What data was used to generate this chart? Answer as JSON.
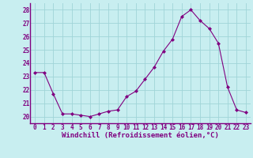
{
  "x": [
    0,
    1,
    2,
    3,
    4,
    5,
    6,
    7,
    8,
    9,
    10,
    11,
    12,
    13,
    14,
    15,
    16,
    17,
    18,
    19,
    20,
    21,
    22,
    23
  ],
  "y": [
    23.3,
    23.3,
    21.7,
    20.2,
    20.2,
    20.1,
    20.0,
    20.2,
    20.4,
    20.5,
    21.5,
    21.9,
    22.8,
    23.7,
    24.9,
    25.8,
    27.5,
    28.0,
    27.2,
    26.6,
    25.5,
    22.2,
    20.5,
    20.3
  ],
  "line_color": "#800080",
  "marker": "D",
  "marker_size": 2.0,
  "bg_color": "#c8eef0",
  "grid_color": "#a0d4d8",
  "xlabel": "Windchill (Refroidissement éolien,°C)",
  "xlabel_color": "#800080",
  "tick_color": "#800080",
  "axis_line_color": "#800080",
  "ylim": [
    19.5,
    28.5
  ],
  "xlim": [
    -0.5,
    23.5
  ],
  "yticks": [
    20,
    21,
    22,
    23,
    24,
    25,
    26,
    27,
    28
  ],
  "xticks": [
    0,
    1,
    2,
    3,
    4,
    5,
    6,
    7,
    8,
    9,
    10,
    11,
    12,
    13,
    14,
    15,
    16,
    17,
    18,
    19,
    20,
    21,
    22,
    23
  ],
  "tick_fontsize": 5.5,
  "xlabel_fontsize": 6.5
}
